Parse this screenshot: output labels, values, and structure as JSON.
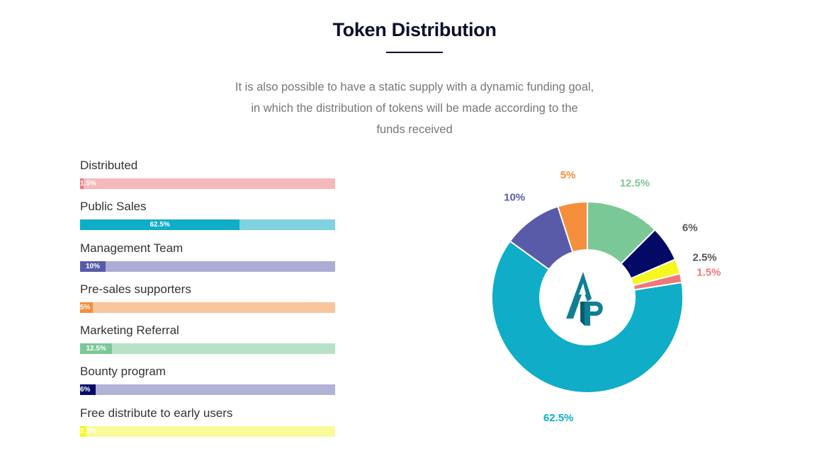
{
  "header": {
    "title": "Token Distribution",
    "subtitle_lines": [
      "It is also possible to have a static supply with a dynamic funding goal,",
      "in which the distribution of tokens will be made according to the",
      "funds received"
    ]
  },
  "chart_data": [
    {
      "type": "bar",
      "orientation": "horizontal-progress",
      "categories": [
        "Distributed",
        "Public Sales",
        "Management Team",
        "Pre-sales supporters",
        "Marketing Referral",
        "Bounty program",
        "Free distribute to early users"
      ],
      "values": [
        1.5,
        62.5,
        10,
        5,
        12.5,
        6,
        2.5
      ],
      "value_labels": [
        "1.5%",
        "62.5%",
        "10%",
        "5%",
        "12.5%",
        "6%",
        "2.5%"
      ],
      "colors": [
        "#f07878",
        "#0fadc7",
        "#5a5ba8",
        "#f58e3d",
        "#7bc897",
        "#020a66",
        "#f7f71f"
      ],
      "track_colors": [
        "#f5b9b9",
        "#7fd2e0",
        "#acacd4",
        "#f8c59c",
        "#b8e2c8",
        "#b1b3d6",
        "#f8fb9a"
      ],
      "xlim": [
        0,
        100
      ]
    },
    {
      "type": "pie",
      "donut": true,
      "values": [
        62.5,
        10,
        5,
        12.5,
        6,
        2.5,
        1.5
      ],
      "value_labels": [
        "62.5%",
        "10%",
        "5%",
        "12.5%",
        "6%",
        "2.5%",
        "1.5%"
      ],
      "colors": [
        "#0fadc7",
        "#5a5ba8",
        "#f58e3d",
        "#7bc897",
        "#020a66",
        "#f7f71f",
        "#f07878"
      ],
      "label_colors": [
        "#0fadc7",
        "#5a5ba8",
        "#f58e3d",
        "#7bc897",
        "#555555",
        "#555555",
        "#f07878"
      ],
      "center_logo": "ap-logo-icon"
    }
  ]
}
